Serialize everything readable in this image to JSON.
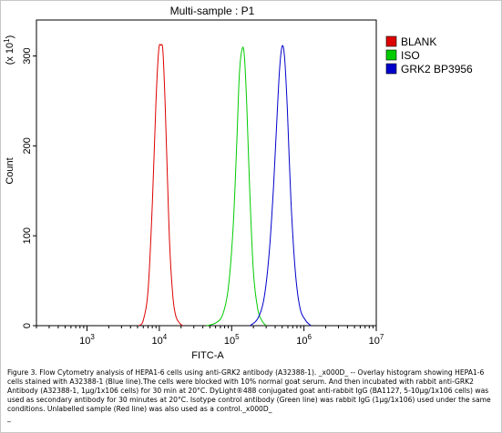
{
  "chart_data": {
    "type": "line",
    "title": "Multi-sample : P1",
    "xlabel": "FITC-A",
    "ylabel": "Count",
    "y_multiplier": "(x 10^1)",
    "x_scale": "log",
    "xlim": [
      200,
      10000000
    ],
    "ylim": [
      0,
      340
    ],
    "x_ticks": [
      {
        "base": "10",
        "exp": "3",
        "value": 1000
      },
      {
        "base": "10",
        "exp": "4",
        "value": 10000
      },
      {
        "base": "10",
        "exp": "5",
        "value": 100000
      },
      {
        "base": "10",
        "exp": "6",
        "value": 1000000
      },
      {
        "base": "10",
        "exp": "7",
        "value": 10000000
      }
    ],
    "y_ticks": [
      0,
      100,
      200,
      300
    ],
    "legend_position": "right",
    "series": [
      {
        "name": "BLANK",
        "color": "#dd0000",
        "x": [
          5200,
          6000,
          7000,
          8000,
          9000,
          9800,
          10500,
          11200,
          12000,
          13000,
          14000,
          15500,
          17000,
          19000,
          21000
        ],
        "y": [
          0,
          6,
          40,
          135,
          250,
          306,
          312,
          306,
          250,
          160,
          85,
          30,
          10,
          3,
          0
        ]
      },
      {
        "name": "ISO",
        "color": "#00cc00",
        "x": [
          45000,
          60000,
          75000,
          90000,
          105000,
          118000,
          128000,
          140000,
          150000,
          162000,
          178000,
          200000,
          230000,
          265000,
          300000
        ],
        "y": [
          0,
          3,
          12,
          42,
          110,
          205,
          280,
          308,
          300,
          245,
          150,
          60,
          18,
          5,
          0
        ]
      },
      {
        "name": "GRK2 BP3956",
        "color": "#0000cc",
        "x": [
          180000,
          230000,
          280000,
          330000,
          380000,
          420000,
          460000,
          500000,
          540000,
          590000,
          660000,
          760000,
          880000,
          1050000,
          1250000
        ],
        "y": [
          0,
          8,
          30,
          80,
          155,
          225,
          285,
          311,
          298,
          240,
          140,
          60,
          20,
          6,
          0
        ]
      }
    ]
  },
  "caption": "Figure 3. Flow Cytometry analysis of HEPA1-6 cells using anti-GRK2 antibody (A32388-1). _x000D_ -- Overlay histogram showing HEPA1-6 cells stained with A32388-1 (Blue line).The cells were blocked with 10% normal goat serum. And then incubated with rabbit anti-GRK2 Antibody (A32388-1, 1μg/1x106 cells) for 30 min at 20°C. DyLight®488 conjugated goat anti-rabbit IgG (BA1127, 5-10μg/1x106 cells) was used as secondary antibody for 30 minutes at 20°C. Isotype control antibody (Green line) was rabbit IgG (1μg/1x106) used under the same conditions. Unlabelled sample (Red line) was also used as a control._x000D_\n_"
}
